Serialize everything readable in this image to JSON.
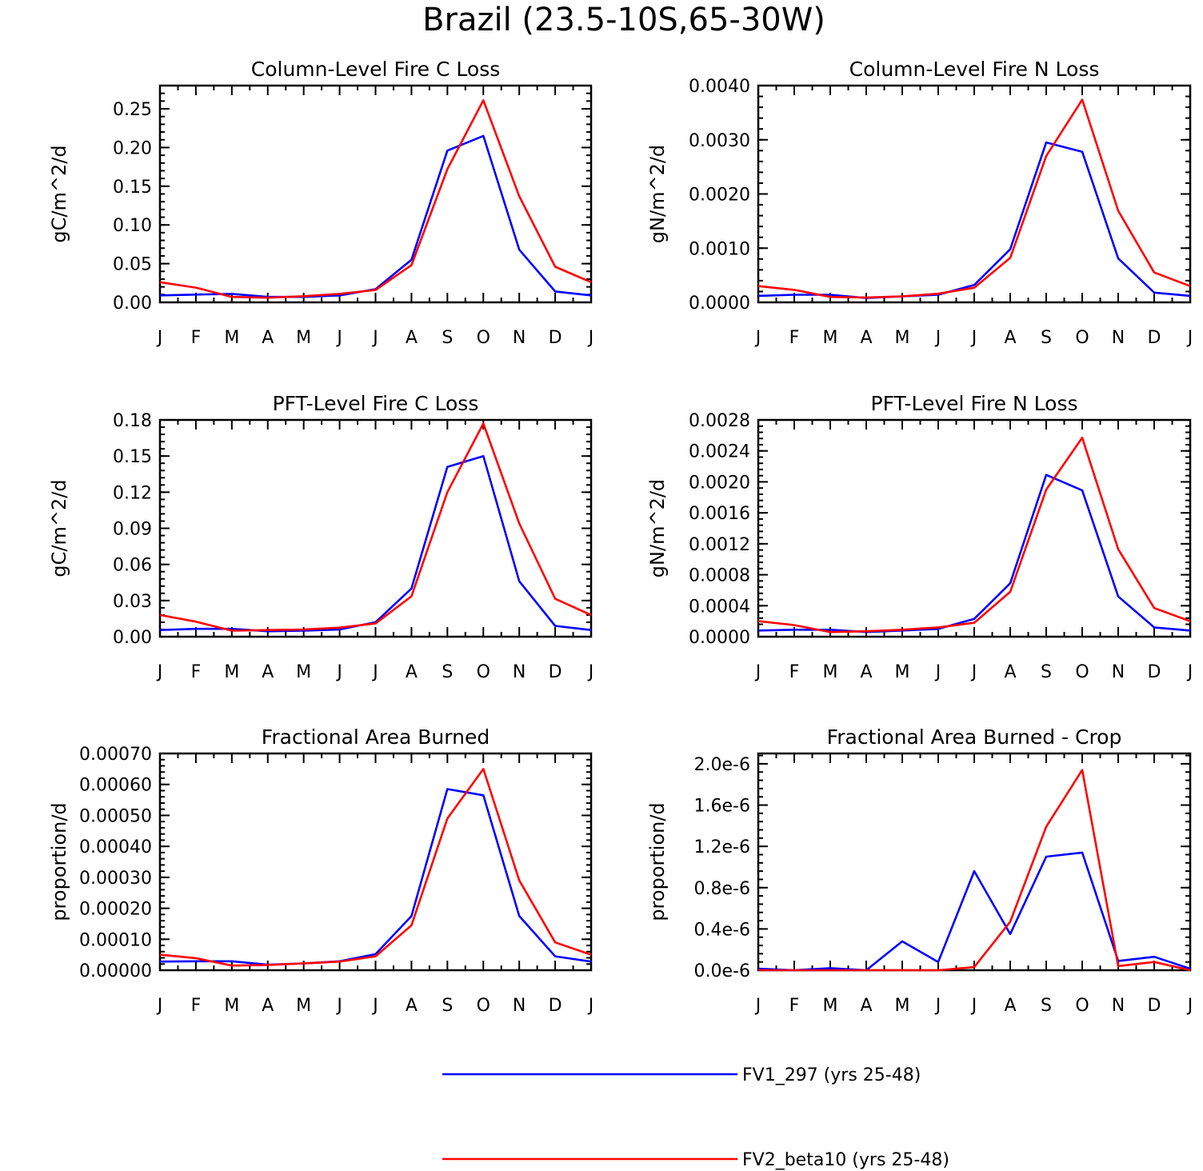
{
  "title": "Brazil (23.5-10S,65-30W)",
  "colors": {
    "series_1": "#0000ff",
    "series_2": "#ff0000"
  },
  "legend": [
    {
      "label": "FV1_297 (yrs 25-48)",
      "color": "#0000ff"
    },
    {
      "label": "FV2_beta10 (yrs 25-48)",
      "color": "#ff0000"
    }
  ],
  "chart_data": [
    {
      "type": "line",
      "title": "Column-Level Fire C Loss",
      "ylabel": "gC/m^2/d",
      "categories": [
        "J",
        "F",
        "M",
        "A",
        "M",
        "J",
        "J",
        "A",
        "S",
        "O",
        "N",
        "D",
        "J"
      ],
      "ylim": [
        0,
        0.28
      ],
      "yticks": [
        0,
        0.05,
        0.1,
        0.15,
        0.2,
        0.25
      ],
      "ytick_labels": [
        "0.00",
        "0.05",
        "0.10",
        "0.15",
        "0.20",
        "0.25"
      ],
      "series": [
        {
          "name": "FV1_297 (yrs 25-48)",
          "values": [
            0.009,
            0.01,
            0.011,
            0.007,
            0.007,
            0.009,
            0.017,
            0.055,
            0.196,
            0.215,
            0.068,
            0.014,
            0.009
          ]
        },
        {
          "name": "FV2_beta10 (yrs 25-48)",
          "values": [
            0.026,
            0.019,
            0.007,
            0.006,
            0.008,
            0.011,
            0.016,
            0.048,
            0.172,
            0.261,
            0.137,
            0.046,
            0.026
          ]
        }
      ]
    },
    {
      "type": "line",
      "title": "Column-Level Fire N Loss",
      "ylabel": "gN/m^2/d",
      "categories": [
        "J",
        "F",
        "M",
        "A",
        "M",
        "J",
        "J",
        "A",
        "S",
        "O",
        "N",
        "D",
        "J"
      ],
      "ylim": [
        0,
        0.004
      ],
      "yticks": [
        0,
        0.001,
        0.002,
        0.003,
        0.004
      ],
      "ytick_labels": [
        "0.0000",
        "0.0010",
        "0.0020",
        "0.0030",
        "0.0040"
      ],
      "series": [
        {
          "name": "FV1_297 (yrs 25-48)",
          "values": [
            0.00012,
            0.00014,
            0.00014,
            8e-05,
            0.00011,
            0.00014,
            0.00032,
            0.00098,
            0.00295,
            0.00278,
            0.00081,
            0.00018,
            0.00012
          ]
        },
        {
          "name": "FV2_beta10 (yrs 25-48)",
          "values": [
            0.0003,
            0.00023,
            0.0001,
            9e-05,
            0.00011,
            0.00016,
            0.00027,
            0.00082,
            0.0027,
            0.00374,
            0.00169,
            0.00055,
            0.0003
          ]
        }
      ]
    },
    {
      "type": "line",
      "title": "PFT-Level Fire C Loss",
      "ylabel": "gC/m^2/d",
      "categories": [
        "J",
        "F",
        "M",
        "A",
        "M",
        "J",
        "J",
        "A",
        "S",
        "O",
        "N",
        "D",
        "J"
      ],
      "ylim": [
        0,
        0.18
      ],
      "yticks": [
        0,
        0.03,
        0.06,
        0.09,
        0.12,
        0.15,
        0.18
      ],
      "ytick_labels": [
        "0.00",
        "0.03",
        "0.06",
        "0.09",
        "0.12",
        "0.15",
        "0.18"
      ],
      "series": [
        {
          "name": "FV1_297 (yrs 25-48)",
          "values": [
            0.0055,
            0.0065,
            0.0065,
            0.0045,
            0.005,
            0.006,
            0.012,
            0.04,
            0.141,
            0.15,
            0.046,
            0.009,
            0.0055
          ]
        },
        {
          "name": "FV2_beta10 (yrs 25-48)",
          "values": [
            0.018,
            0.0125,
            0.005,
            0.0055,
            0.006,
            0.0075,
            0.011,
            0.0335,
            0.12,
            0.177,
            0.094,
            0.0315,
            0.018
          ]
        }
      ]
    },
    {
      "type": "line",
      "title": "PFT-Level Fire N Loss",
      "ylabel": "gN/m^2/d",
      "categories": [
        "J",
        "F",
        "M",
        "A",
        "M",
        "J",
        "J",
        "A",
        "S",
        "O",
        "N",
        "D",
        "J"
      ],
      "ylim": [
        0,
        0.0028
      ],
      "yticks": [
        0,
        0.0004,
        0.0008,
        0.0012,
        0.0016,
        0.002,
        0.0024,
        0.0028
      ],
      "ytick_labels": [
        "0.0000",
        "0.0004",
        "0.0008",
        "0.0012",
        "0.0016",
        "0.0020",
        "0.0024",
        "0.0028"
      ],
      "series": [
        {
          "name": "FV1_297 (yrs 25-48)",
          "values": [
            8e-05,
            9e-05,
            9e-05,
            6e-05,
            8e-05,
            0.0001,
            0.00023,
            0.00069,
            0.00209,
            0.00189,
            0.00052,
            0.00012,
            8e-05
          ]
        },
        {
          "name": "FV2_beta10 (yrs 25-48)",
          "values": [
            0.0002,
            0.00015,
            6e-05,
            7e-05,
            9e-05,
            0.00012,
            0.00018,
            0.00058,
            0.0019,
            0.00257,
            0.00113,
            0.00037,
            0.0002
          ]
        }
      ]
    },
    {
      "type": "line",
      "title": "Fractional Area Burned",
      "ylabel": "proportion/d",
      "categories": [
        "J",
        "F",
        "M",
        "A",
        "M",
        "J",
        "J",
        "A",
        "S",
        "O",
        "N",
        "D",
        "J"
      ],
      "ylim": [
        0,
        0.0007
      ],
      "yticks": [
        0,
        0.0001,
        0.0002,
        0.0003,
        0.0004,
        0.0005,
        0.0006,
        0.0007
      ],
      "ytick_labels": [
        "0.00000",
        "0.00010",
        "0.00020",
        "0.00030",
        "0.00040",
        "0.00050",
        "0.00060",
        "0.00070"
      ],
      "series": [
        {
          "name": "FV1_297 (yrs 25-48)",
          "values": [
            2.8e-05,
            2.9e-05,
            2.9e-05,
            1.8e-05,
            2.2e-05,
            2.9e-05,
            5.2e-05,
            0.000175,
            0.000585,
            0.000565,
            0.000175,
            4.5e-05,
            2.8e-05
          ]
        },
        {
          "name": "FV2_beta10 (yrs 25-48)",
          "values": [
            5e-05,
            3.9e-05,
            1.5e-05,
            1.7e-05,
            2.2e-05,
            2.8e-05,
            4.5e-05,
            0.000145,
            0.00049,
            0.00065,
            0.00029,
            9e-05,
            5e-05
          ]
        }
      ]
    },
    {
      "type": "line",
      "title": "Fractional Area Burned - Crop",
      "ylabel": "proportion/d",
      "categories": [
        "J",
        "F",
        "M",
        "A",
        "M",
        "J",
        "J",
        "A",
        "S",
        "O",
        "N",
        "D",
        "J"
      ],
      "ylim": [
        0,
        2.1e-06
      ],
      "yticks": [
        0,
        4e-07,
        8e-07,
        1.2e-06,
        1.6e-06,
        2e-06
      ],
      "ytick_labels": [
        "0.0e-6",
        "0.4e-6",
        "0.8e-6",
        "1.2e-6",
        "1.6e-6",
        "2.0e-6"
      ],
      "series": [
        {
          "name": "FV1_297 (yrs 25-48)",
          "values": [
            1.5e-08,
            0.0,
            2e-08,
            0.0,
            2.8e-07,
            8e-08,
            9.6e-07,
            3.5e-07,
            1.1e-06,
            1.14e-06,
            9e-08,
            1.3e-07,
            1.5e-08
          ]
        },
        {
          "name": "FV2_beta10 (yrs 25-48)",
          "values": [
            0.0,
            0.0,
            0.0,
            0.0,
            0.0,
            0.0,
            3e-08,
            4.7e-07,
            1.39e-06,
            1.94e-06,
            4e-08,
            8e-08,
            0.0
          ]
        }
      ]
    }
  ]
}
